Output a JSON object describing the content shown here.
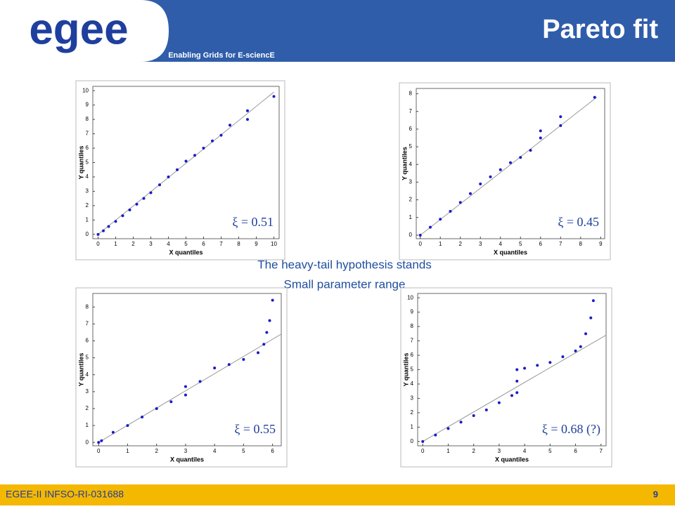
{
  "header": {
    "logo": "egee",
    "tagline": "Enabling Grids for E-sciencE",
    "title": "Pareto fit"
  },
  "notes": [
    "The heavy-tail hypothesis stands",
    "Small parameter range"
  ],
  "footer": {
    "left": "EGEE-II INFSO-RI-031688",
    "page": "9"
  },
  "chart_data": [
    {
      "type": "scatter",
      "xlabel": "X quantiles",
      "ylabel": "Y quantiles",
      "annotation": "ξ = 0.51",
      "color": "#1a1ac8",
      "x": [
        0,
        0.3,
        0.6,
        1,
        1.4,
        1.8,
        2.2,
        2.6,
        3,
        3.5,
        4,
        4.5,
        5,
        5.5,
        6,
        6.5,
        7,
        7.5,
        8.5,
        8.5,
        10
      ],
      "y": [
        0,
        0.25,
        0.55,
        0.9,
        1.3,
        1.7,
        2.1,
        2.5,
        2.9,
        3.45,
        4,
        4.5,
        5.1,
        5.5,
        6,
        6.5,
        6.9,
        7.6,
        8.6,
        8.0,
        9.6
      ],
      "reference_line": {
        "x": [
          0,
          10
        ],
        "y": [
          0,
          9.9
        ]
      },
      "xlim": [
        -0.3,
        10.3
      ],
      "ylim": [
        -0.3,
        10.3
      ],
      "xticks": [
        0,
        1,
        2,
        3,
        4,
        5,
        6,
        7,
        8,
        9,
        10
      ],
      "yticks": [
        0,
        1,
        2,
        3,
        4,
        5,
        6,
        7,
        8,
        9,
        10
      ]
    },
    {
      "type": "scatter",
      "xlabel": "X quantiles",
      "ylabel": "Y quantiles",
      "annotation": "ξ = 0.45",
      "color": "#1a1ac8",
      "x": [
        0,
        0.5,
        1,
        1.5,
        2,
        2.5,
        3,
        3.5,
        4,
        4.5,
        5,
        5.5,
        6,
        6,
        7,
        7,
        8.7
      ],
      "y": [
        0,
        0.45,
        0.9,
        1.35,
        1.85,
        2.35,
        2.9,
        3.3,
        3.7,
        4.1,
        4.4,
        4.8,
        5.5,
        5.9,
        6.2,
        6.7,
        7.8
      ],
      "reference_line": {
        "x": [
          0,
          8.8
        ],
        "y": [
          0,
          7.8
        ]
      },
      "xlim": [
        -0.2,
        9.2
      ],
      "ylim": [
        -0.2,
        8.3
      ],
      "xticks": [
        0,
        1,
        2,
        3,
        4,
        5,
        6,
        7,
        8,
        9
      ],
      "yticks": [
        0,
        1,
        2,
        3,
        4,
        5,
        6,
        7,
        8
      ]
    },
    {
      "type": "scatter",
      "xlabel": "X quantiles",
      "ylabel": "Y quantiles",
      "annotation": "ξ = 0.55",
      "color": "#1a1ac8",
      "x": [
        0,
        0.1,
        0.5,
        1,
        1.5,
        2,
        2.5,
        3,
        3,
        3.5,
        4,
        4.5,
        5,
        5.5,
        5.7,
        5.8,
        5.9,
        6
      ],
      "y": [
        0,
        0.1,
        0.6,
        1.0,
        1.5,
        2.0,
        2.4,
        2.8,
        3.3,
        3.6,
        4.4,
        4.6,
        4.9,
        5.3,
        5.8,
        6.5,
        7.2,
        8.4
      ],
      "reference_line": {
        "x": [
          0,
          6.3
        ],
        "y": [
          0,
          6.4
        ]
      },
      "xlim": [
        -0.2,
        6.3
      ],
      "ylim": [
        -0.2,
        8.8
      ],
      "xticks": [
        0,
        1,
        2,
        3,
        4,
        5,
        6
      ],
      "yticks": [
        0,
        1,
        2,
        3,
        4,
        5,
        6,
        7,
        8
      ]
    },
    {
      "type": "scatter",
      "xlabel": "X quantiles",
      "ylabel": "Y quantiles",
      "annotation": "ξ = 0.68 (?)",
      "color": "#1a1ac8",
      "x": [
        0,
        0.5,
        1,
        1.5,
        2,
        2.5,
        3,
        3.5,
        3.7,
        3.7,
        3.7,
        4,
        4.5,
        5,
        5.5,
        6,
        6.2,
        6.4,
        6.6,
        6.7
      ],
      "y": [
        0,
        0.45,
        0.9,
        1.35,
        1.8,
        2.2,
        2.7,
        3.2,
        3.4,
        4.2,
        5.0,
        5.1,
        5.3,
        5.5,
        5.9,
        6.3,
        6.6,
        7.5,
        8.6,
        9.8
      ],
      "reference_line": {
        "x": [
          0,
          7.2
        ],
        "y": [
          0,
          7.4
        ]
      },
      "xlim": [
        -0.2,
        7.2
      ],
      "ylim": [
        -0.3,
        10.3
      ],
      "xticks": [
        0,
        1,
        2,
        3,
        4,
        5,
        6,
        7
      ],
      "yticks": [
        0,
        1,
        2,
        3,
        4,
        5,
        6,
        7,
        8,
        9,
        10
      ]
    }
  ]
}
